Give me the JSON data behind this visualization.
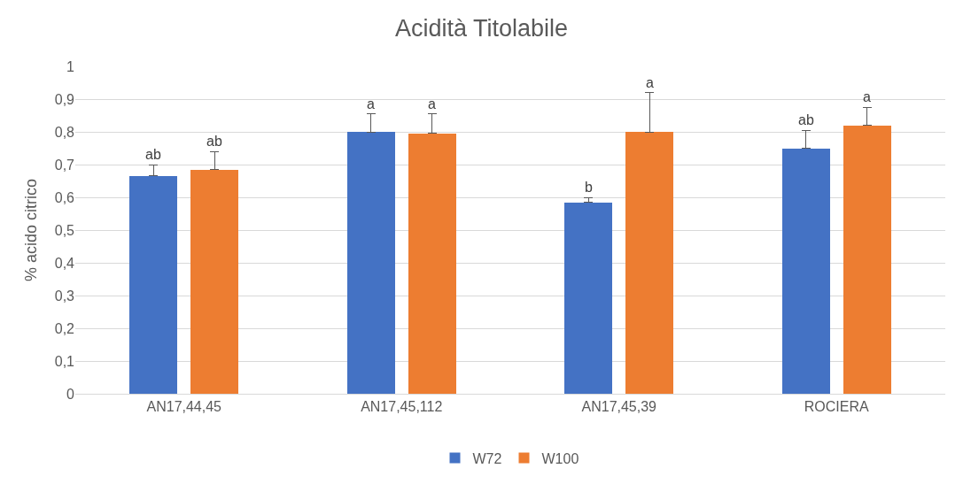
{
  "chart_data": {
    "type": "bar",
    "title": "Acidità Titolabile",
    "ylabel": "% acido citrico",
    "categories": [
      "AN17,44,45",
      "AN17,45,112",
      "AN17,45,39",
      "ROCIERA"
    ],
    "series": [
      {
        "name": "W72",
        "color": "#4472c4",
        "values": [
          0.665,
          0.8,
          0.585,
          0.75
        ],
        "errors": [
          [
            0.665,
            0.7
          ],
          [
            0.8,
            0.855
          ],
          [
            0.585,
            0.6
          ],
          [
            0.75,
            0.805
          ]
        ],
        "value_labels": [
          "ab",
          "a",
          "b",
          "ab"
        ]
      },
      {
        "name": "W100",
        "color": "#ed7d31",
        "values": [
          0.685,
          0.795,
          0.8,
          0.82
        ],
        "errors": [
          [
            0.685,
            0.74
          ],
          [
            0.795,
            0.855
          ],
          [
            0.8,
            0.92
          ],
          [
            0.82,
            0.875
          ]
        ],
        "value_labels": [
          "ab",
          "a",
          "a",
          "a"
        ]
      }
    ],
    "ylim": [
      0,
      1
    ],
    "yticks": [
      {
        "value": 0,
        "label": "0"
      },
      {
        "value": 0.1,
        "label": "0,1"
      },
      {
        "value": 0.2,
        "label": "0,2"
      },
      {
        "value": 0.3,
        "label": "0,3"
      },
      {
        "value": 0.4,
        "label": "0,4"
      },
      {
        "value": 0.5,
        "label": "0,5"
      },
      {
        "value": 0.6,
        "label": "0,6"
      },
      {
        "value": 0.7,
        "label": "0,7"
      },
      {
        "value": 0.8,
        "label": "0,8"
      },
      {
        "value": 0.9,
        "label": "0,9"
      },
      {
        "value": 1,
        "label": "1"
      }
    ],
    "grid": "y",
    "legend": "bottom"
  }
}
